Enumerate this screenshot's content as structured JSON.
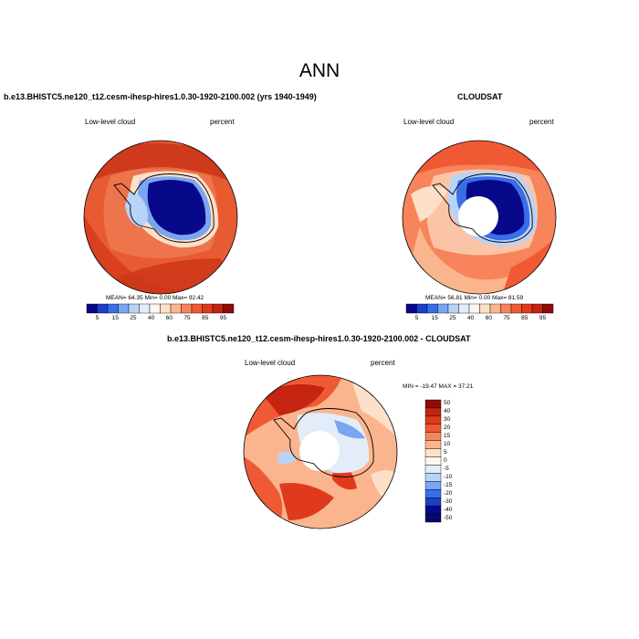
{
  "figure": {
    "title": "ANN"
  },
  "panels": {
    "model": {
      "title": "b.e13.BHISTC5.ne120_t12.cesm-ihesp-hires1.0.30-1920-2100.002 (yrs 1940-1949)",
      "left_label": "Low-level cloud",
      "right_label": "percent",
      "stats": "MEAN= 64.35  Min=   0.00  Max=  92.42"
    },
    "obs": {
      "title": "CLOUDSAT",
      "left_label": "Low-level cloud",
      "right_label": "percent",
      "stats": "MEAN= 56.81  Min=   0.00  Max=  81.59"
    },
    "diff": {
      "title": "b.e13.BHISTC5.ne120_t12.cesm-ihesp-hires1.0.30-1920-2100.002 - CLOUDSAT",
      "left_label": "Low-level cloud",
      "right_label": "percent",
      "stats": "MIN = -19.47  MAX =  37.21"
    }
  },
  "colorbars": {
    "abs_ticks": [
      "5",
      "15",
      "25",
      "40",
      "60",
      "75",
      "85",
      "95"
    ],
    "abs_colors": [
      "#08088a",
      "#1c3fc8",
      "#3a6ee8",
      "#7aa5f0",
      "#b9d3f7",
      "#e3ecf9",
      "#fff6ee",
      "#fde0c8",
      "#fbb58e",
      "#f7845a",
      "#ef5a34",
      "#e03a1c",
      "#c42410",
      "#8e0c05"
    ],
    "diff_ticks": [
      "50",
      "40",
      "30",
      "20",
      "15",
      "10",
      "5",
      "0",
      "-5",
      "-10",
      "-15",
      "-20",
      "-30",
      "-40",
      "-50"
    ],
    "diff_colors": [
      "#8e0c05",
      "#c42410",
      "#e03a1c",
      "#ef5a34",
      "#f7845a",
      "#fbb58e",
      "#fde0c8",
      "#fff6ee",
      "#e3ecf9",
      "#b9d3f7",
      "#7aa5f0",
      "#3a6ee8",
      "#1c3fc8",
      "#08088a",
      "#06066e"
    ]
  }
}
